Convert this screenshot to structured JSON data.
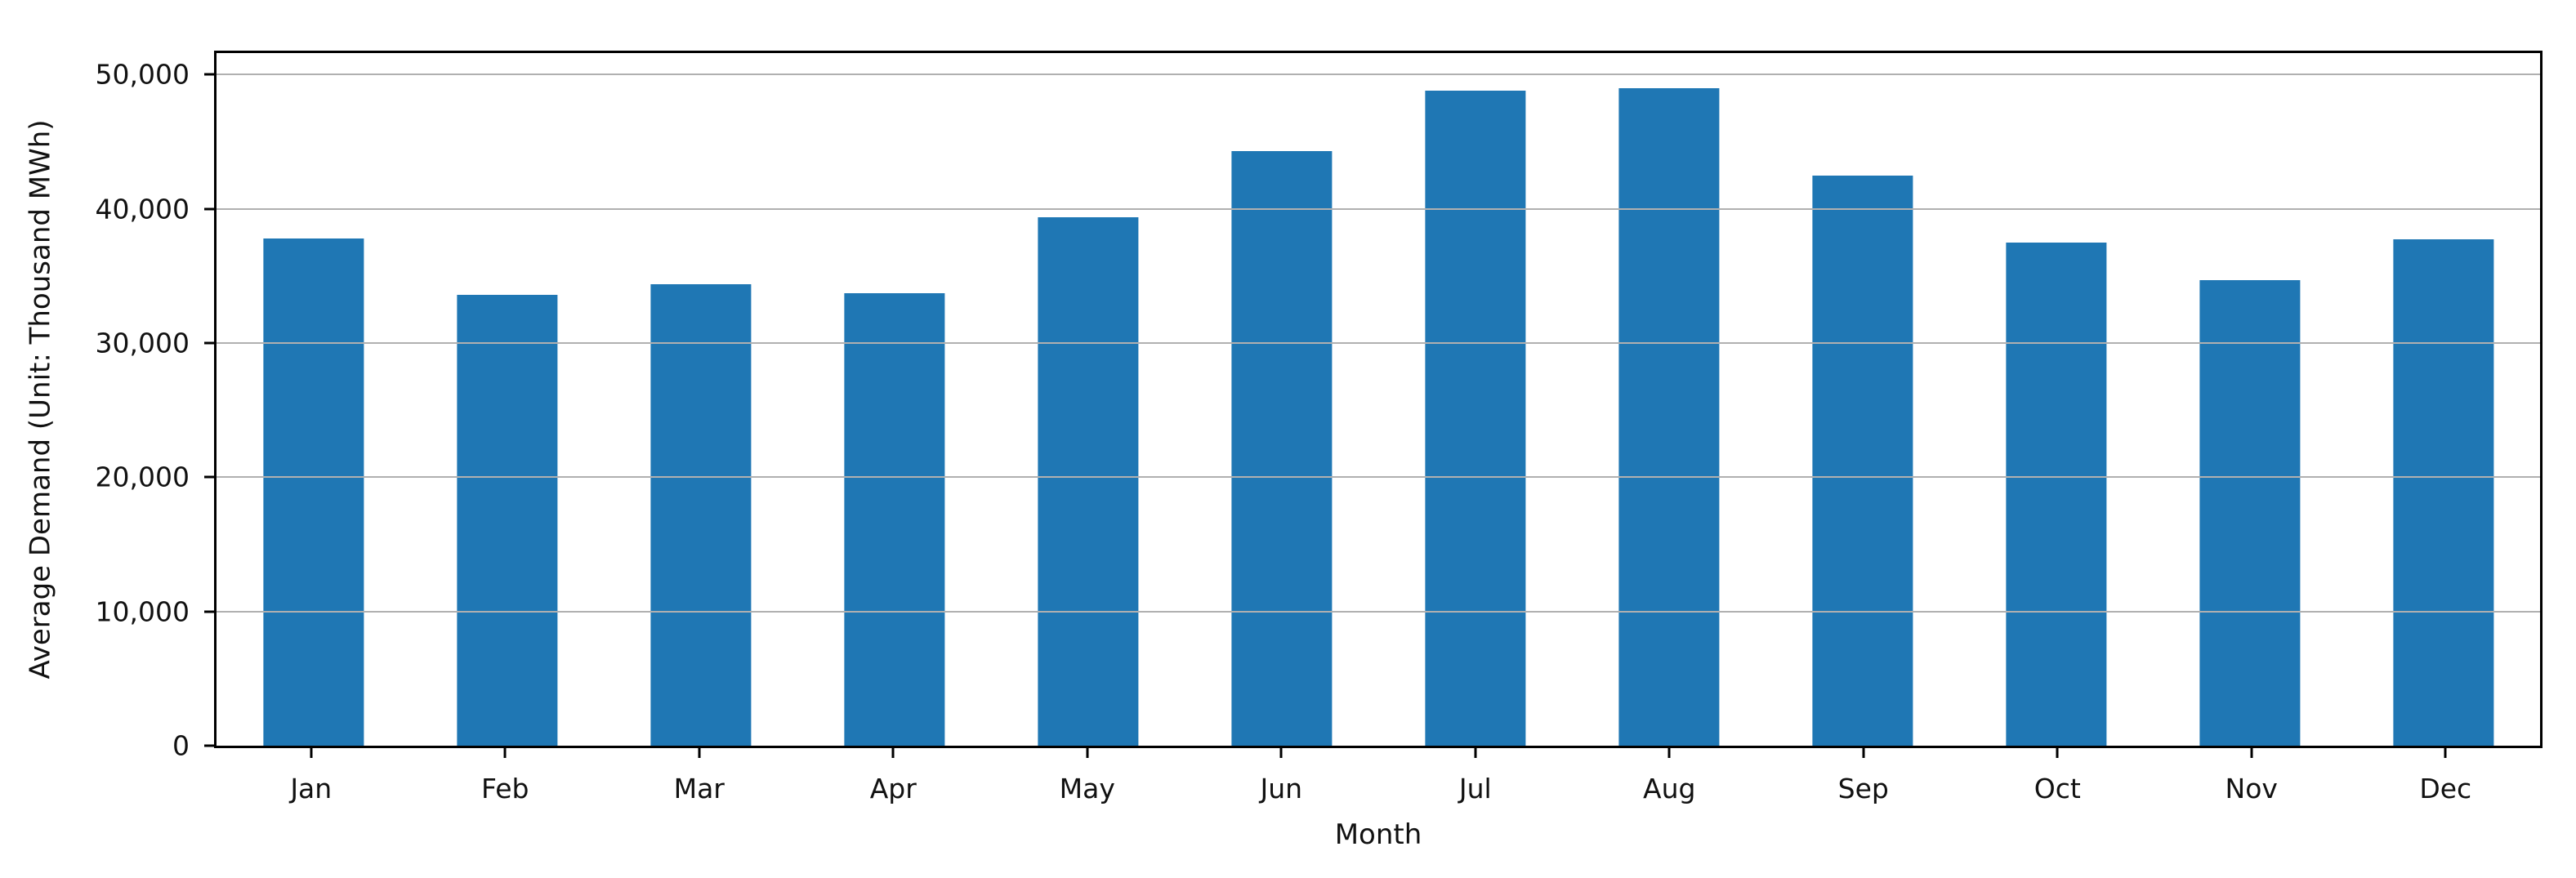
{
  "chart_data": {
    "type": "bar",
    "title": "",
    "categories": [
      "Jan",
      "Feb",
      "Mar",
      "Apr",
      "May",
      "Jun",
      "Jul",
      "Aug",
      "Sep",
      "Oct",
      "Nov",
      "Dec"
    ],
    "values": [
      37800,
      33600,
      34400,
      33700,
      39400,
      44300,
      48800,
      49000,
      42500,
      37500,
      34700,
      37700
    ],
    "xlabel": "Month",
    "ylabel": "Average Demand (Unit: Thousand MWh)",
    "ylim": [
      0,
      51600
    ],
    "yticks": [
      0,
      10000,
      20000,
      30000,
      40000,
      50000
    ],
    "ytick_labels": [
      "0",
      "10,000",
      "20,000",
      "30,000",
      "40,000",
      "50,000"
    ],
    "bar_color": "#1f77b4",
    "grid_color": "#b0b0b0",
    "spine_color": "#000000",
    "text_color": "#111111",
    "grid": "horizontal-only",
    "grid_above_bars": true,
    "legend": "none",
    "bar_width_fraction": 0.52,
    "tick_direction": "out"
  }
}
